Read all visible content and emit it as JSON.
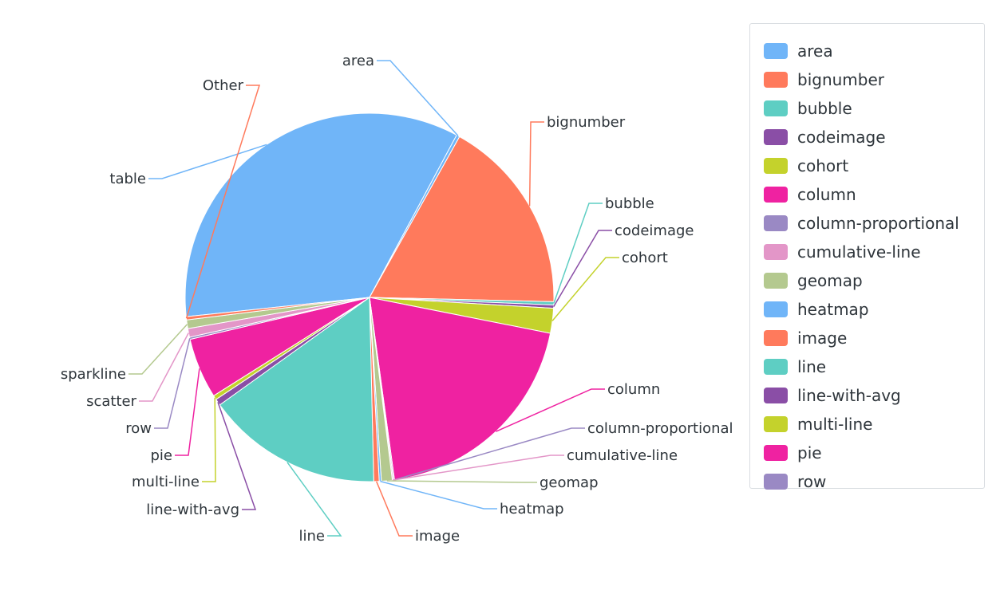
{
  "chart_data": {
    "type": "pie",
    "title": "",
    "unit": "%",
    "slices": [
      {
        "label": "table",
        "value": 36.4,
        "color": "#70B5F8"
      },
      {
        "label": "area",
        "value": 0.3,
        "color": "#70B5F8"
      },
      {
        "label": "bignumber",
        "value": 18.2,
        "color": "#FF7A5C"
      },
      {
        "label": "bubble",
        "value": 0.3,
        "color": "#5ECEC3"
      },
      {
        "label": "codeimage",
        "value": 0.3,
        "color": "#8A4EA6"
      },
      {
        "label": "cohort",
        "value": 2.3,
        "color": "#C4D22C"
      },
      {
        "label": "column",
        "value": 20.8,
        "color": "#EF22A1"
      },
      {
        "label": "column-proportional",
        "value": 0.1,
        "color": "#9A89C4"
      },
      {
        "label": "cumulative-line",
        "value": 0.1,
        "color": "#E396C8"
      },
      {
        "label": "geomap",
        "value": 1.0,
        "color": "#B4C98F"
      },
      {
        "label": "heatmap",
        "value": 0.2,
        "color": "#70B5F8"
      },
      {
        "label": "image",
        "value": 0.5,
        "color": "#FF7A5C"
      },
      {
        "label": "line",
        "value": 16.3,
        "color": "#5ECEC3"
      },
      {
        "label": "line-with-avg",
        "value": 0.6,
        "color": "#8A4EA6"
      },
      {
        "label": "multi-line",
        "value": 0.4,
        "color": "#C4D22C"
      },
      {
        "label": "pie",
        "value": 5.6,
        "color": "#EF22A1"
      },
      {
        "label": "row",
        "value": 0.2,
        "color": "#9A89C4"
      },
      {
        "label": "scatter",
        "value": 0.8,
        "color": "#E396C8"
      },
      {
        "label": "sparkline",
        "value": 0.8,
        "color": "#B4C98F"
      },
      {
        "label": "Other",
        "value": 0.3,
        "color": "#FF7A5C"
      }
    ],
    "legend_placement": "right"
  },
  "legend": {
    "items": [
      {
        "label": "area",
        "color": "#70B5F8"
      },
      {
        "label": "bignumber",
        "color": "#FF7A5C"
      },
      {
        "label": "bubble",
        "color": "#5ECEC3"
      },
      {
        "label": "codeimage",
        "color": "#8A4EA6"
      },
      {
        "label": "cohort",
        "color": "#C4D22C"
      },
      {
        "label": "column",
        "color": "#EF22A1"
      },
      {
        "label": "column-proportional",
        "color": "#9A89C4"
      },
      {
        "label": "cumulative-line",
        "color": "#E396C8"
      },
      {
        "label": "geomap",
        "color": "#B4C98F"
      },
      {
        "label": "heatmap",
        "color": "#70B5F8"
      },
      {
        "label": "image",
        "color": "#FF7A5C"
      },
      {
        "label": "line",
        "color": "#5ECEC3"
      },
      {
        "label": "line-with-avg",
        "color": "#8A4EA6"
      },
      {
        "label": "multi-line",
        "color": "#C4D22C"
      },
      {
        "label": "pie",
        "color": "#EF22A1"
      },
      {
        "label": "row",
        "color": "#9A89C4"
      }
    ]
  }
}
